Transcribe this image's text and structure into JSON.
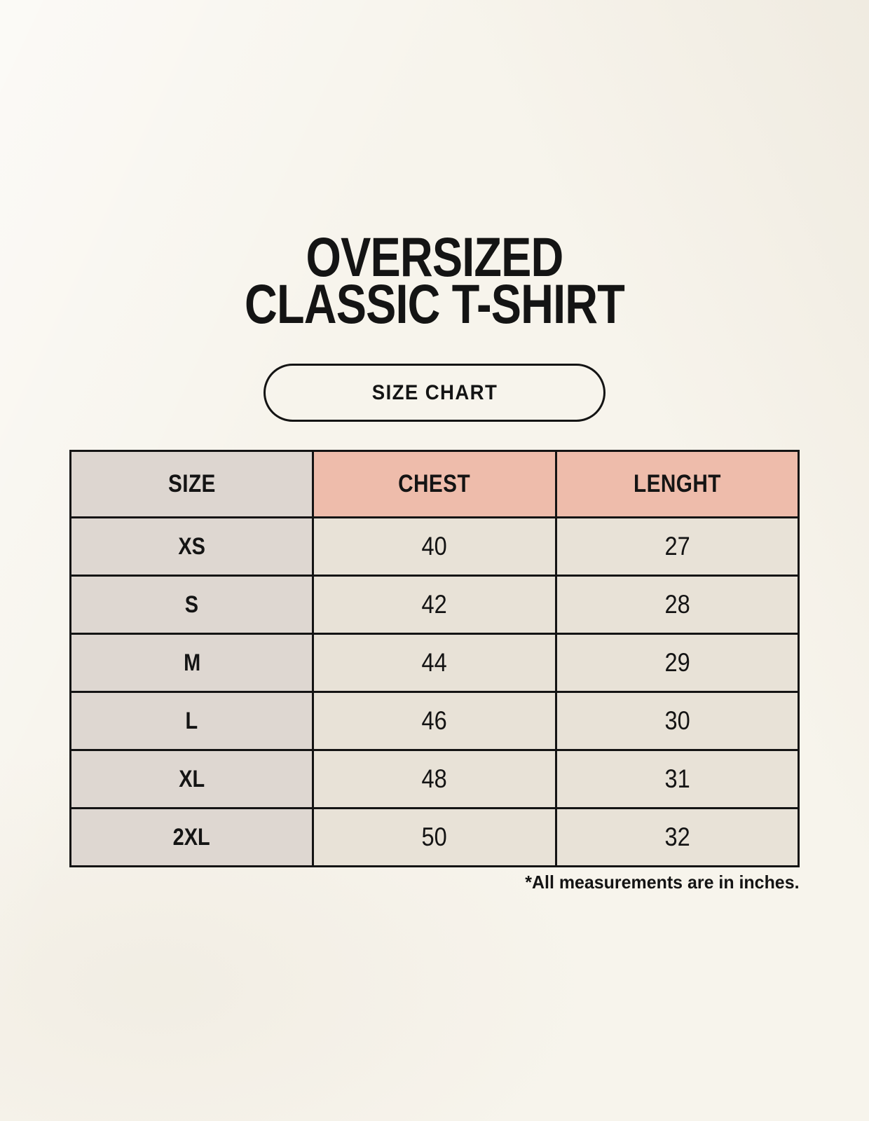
{
  "page": {
    "title_line1": "OVERSIZED",
    "title_line2": "CLASSIC T-SHIRT",
    "badge_label": "SIZE CHART",
    "footnote": "*All measurements are in inches."
  },
  "size_chart": {
    "columns": [
      "SIZE",
      "CHEST",
      "LENGHT"
    ],
    "rows": [
      {
        "size": "XS",
        "chest": "40",
        "lenght": "27"
      },
      {
        "size": "S",
        "chest": "42",
        "lenght": "28"
      },
      {
        "size": "M",
        "chest": "44",
        "lenght": "29"
      },
      {
        "size": "L",
        "chest": "46",
        "lenght": "30"
      },
      {
        "size": "XL",
        "chest": "48",
        "lenght": "31"
      },
      {
        "size": "2XL",
        "chest": "50",
        "lenght": "32"
      }
    ]
  },
  "colors": {
    "page_bg": "#f7f4ec",
    "header_label_bg": "#ddd6d0",
    "header_accent_bg": "#eebcab",
    "row_label_bg": "#ded7d1",
    "row_value_bg": "#e8e2d7",
    "border": "#141414",
    "text": "#141414"
  }
}
